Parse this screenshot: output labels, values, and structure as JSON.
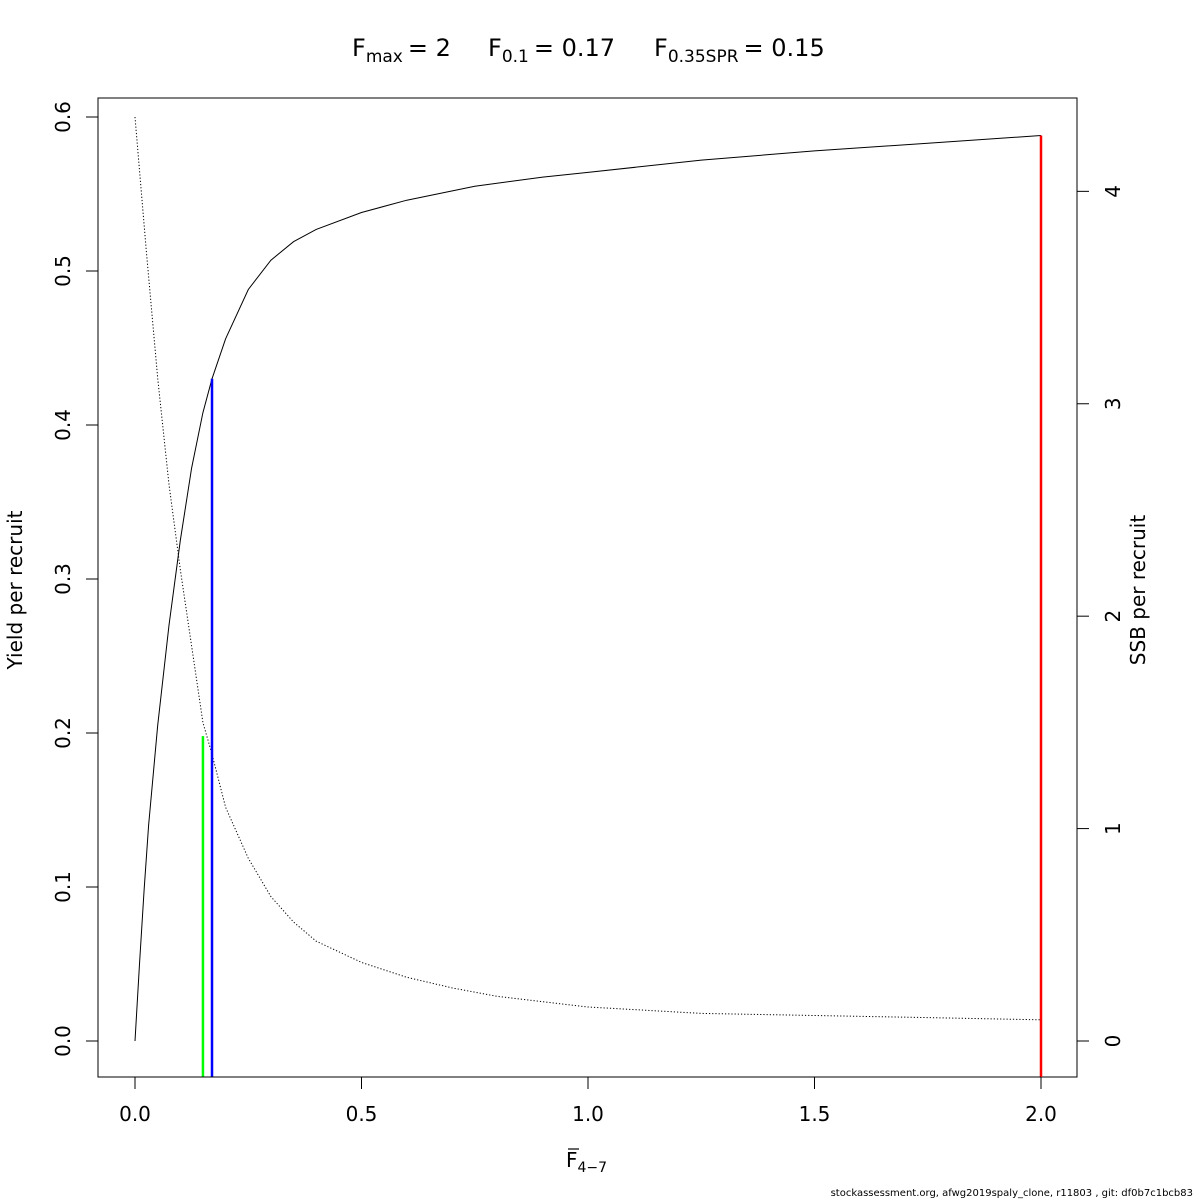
{
  "chart_data": {
    "type": "line",
    "title": {
      "fmax": {
        "label": "F",
        "sub": "max",
        "value": "= 2"
      },
      "f01": {
        "label": "F",
        "sub": "0.1",
        "value": "= 0.17"
      },
      "fspr": {
        "label": "F",
        "sub": "0.35SPR",
        "value": "= 0.15"
      }
    },
    "xlabel": {
      "main": "F",
      "sub": "4−7"
    },
    "ylabel": "Yield per recruit",
    "y2label": "SSB per recruit",
    "xlim": [
      0,
      2
    ],
    "ylim": [
      0,
      0.6
    ],
    "y2lim": [
      0,
      4.35
    ],
    "x_ticks": [
      {
        "value": 0.0,
        "label": "0.0"
      },
      {
        "value": 0.5,
        "label": "0.5"
      },
      {
        "value": 1.0,
        "label": "1.0"
      },
      {
        "value": 1.5,
        "label": "1.5"
      },
      {
        "value": 2.0,
        "label": "2.0"
      }
    ],
    "y_ticks": [
      {
        "value": 0.0,
        "label": "0.0"
      },
      {
        "value": 0.1,
        "label": "0.1"
      },
      {
        "value": 0.2,
        "label": "0.2"
      },
      {
        "value": 0.3,
        "label": "0.3"
      },
      {
        "value": 0.4,
        "label": "0.4"
      },
      {
        "value": 0.5,
        "label": "0.5"
      },
      {
        "value": 0.6,
        "label": "0.6"
      }
    ],
    "y2_ticks": [
      {
        "value": 0,
        "label": "0"
      },
      {
        "value": 1,
        "label": "1"
      },
      {
        "value": 2,
        "label": "2"
      },
      {
        "value": 3,
        "label": "3"
      },
      {
        "value": 4,
        "label": "4"
      }
    ],
    "series": [
      {
        "axis": "left",
        "style": "solid",
        "x": [
          0,
          0.01,
          0.02,
          0.03,
          0.05,
          0.075,
          0.1,
          0.125,
          0.15,
          0.17,
          0.2,
          0.25,
          0.3,
          0.35,
          0.4,
          0.5,
          0.6,
          0.75,
          0.9,
          1.0,
          1.25,
          1.5,
          1.75,
          2.0
        ],
        "y": [
          0,
          0.05,
          0.098,
          0.14,
          0.205,
          0.27,
          0.325,
          0.372,
          0.408,
          0.43,
          0.456,
          0.488,
          0.507,
          0.519,
          0.527,
          0.538,
          0.546,
          0.555,
          0.561,
          0.564,
          0.572,
          0.578,
          0.583,
          0.588
        ]
      },
      {
        "axis": "right",
        "style": "dotted",
        "x": [
          0,
          0.025,
          0.05,
          0.075,
          0.1,
          0.125,
          0.15,
          0.17,
          0.2,
          0.25,
          0.3,
          0.35,
          0.4,
          0.5,
          0.6,
          0.7,
          0.8,
          1.0,
          1.25,
          1.5,
          1.75,
          2.0
        ],
        "y": [
          4.35,
          3.72,
          3.12,
          2.62,
          2.22,
          1.86,
          1.5,
          1.35,
          1.1,
          0.86,
          0.68,
          0.56,
          0.47,
          0.37,
          0.3,
          0.25,
          0.21,
          0.16,
          0.13,
          0.12,
          0.11,
          0.1
        ]
      }
    ],
    "reference_lines": [
      {
        "name": "F0.35SPR",
        "x": 0.15,
        "y_top": 0.198,
        "color": "#00ff00"
      },
      {
        "name": "F0.1",
        "x": 0.17,
        "y_top": 0.43,
        "color": "#0000ff"
      },
      {
        "name": "Fmax",
        "x": 2.0,
        "y_top": 0.588,
        "color": "#ff0000"
      }
    ]
  },
  "footer": "stockassessment.org, afwg2019spaly_clone, r11803 , git: df0b7c1bcb83"
}
